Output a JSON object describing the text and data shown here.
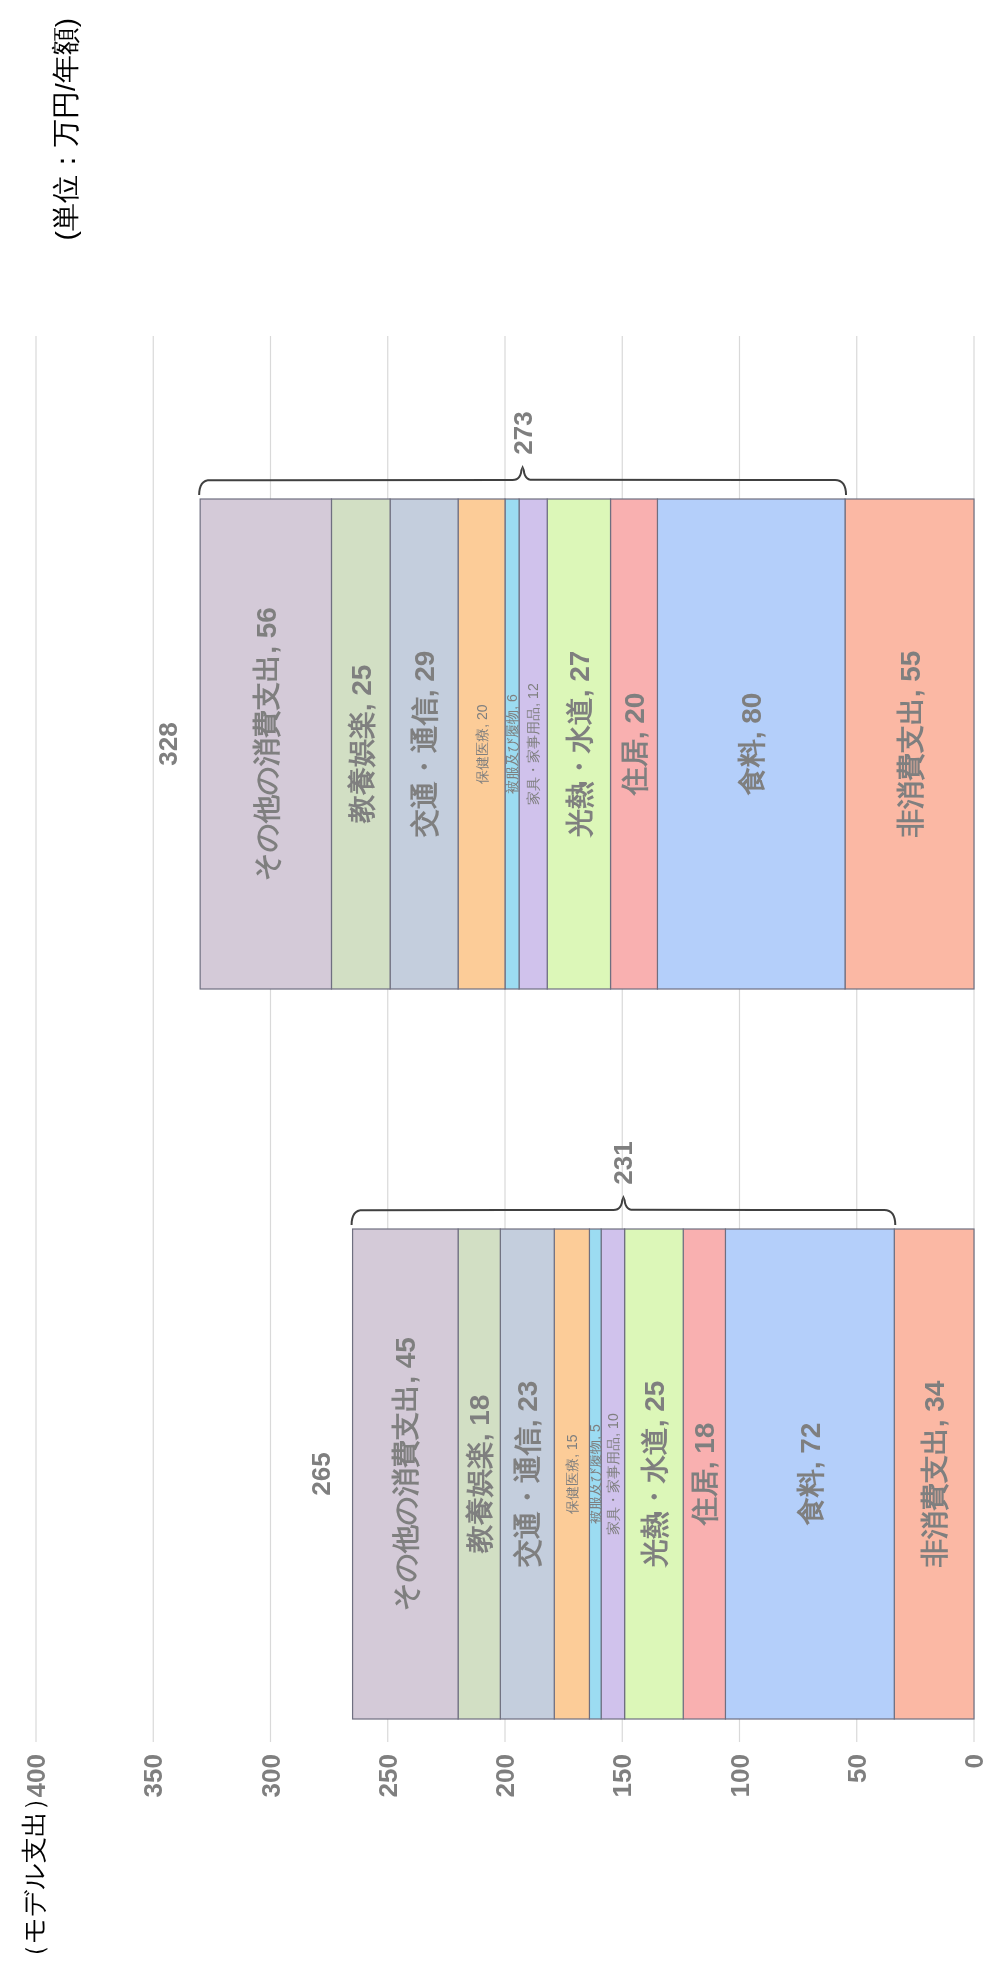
{
  "chart_data": {
    "type": "bar",
    "stacked": true,
    "orientation": "horizontal",
    "categories": [
      null,
      null
    ],
    "ylabel": "（モデル支出）",
    "annotations": [
      "273",
      "231",
      "(単位：万円/年額)"
    ],
    "xlim": [
      400,
      0
    ],
    "xticks": [
      400,
      350,
      300,
      250,
      200,
      150,
      100,
      50,
      0
    ],
    "grid": "x",
    "totals": [
      "328",
      "265"
    ],
    "series": [
      {
        "name": "非消費支出",
        "color": "#fbb8a4",
        "values": [
          55,
          34
        ],
        "value_labels": [
          ", 55",
          ", 34"
        ]
      },
      {
        "name": "食料",
        "color": "#b4cffa",
        "values": [
          80,
          72
        ],
        "value_labels": [
          ", 80",
          ", 72"
        ]
      },
      {
        "name": "住居",
        "color": "#f9b0b0",
        "values": [
          20,
          18
        ],
        "value_labels": [
          ", 20",
          ", 18"
        ]
      },
      {
        "name": "光熱・水道",
        "color": "#dcf7b8",
        "values": [
          27,
          25
        ],
        "value_labels": [
          ", 27",
          ", 25"
        ]
      },
      {
        "name": "家具・家事用品",
        "color": "#d0c2ec",
        "values": [
          12,
          10
        ],
        "value_labels": [
          ", 12",
          ", 10"
        ]
      },
      {
        "name": "被服及び履物",
        "color": "#9cdcf2",
        "values": [
          6,
          5
        ],
        "value_labels": [
          ", 6",
          ", 5"
        ]
      },
      {
        "name": "保健医療",
        "color": "#fccc98",
        "values": [
          20,
          15
        ],
        "value_labels": [
          ", 20",
          ", 15"
        ]
      },
      {
        "name": "交通・通信",
        "color": "#c4cedd",
        "values": [
          29,
          23
        ],
        "value_labels": [
          ", 29",
          ", 23"
        ]
      },
      {
        "name": "教養娯楽",
        "color": "#d2dfc4",
        "values": [
          25,
          18
        ],
        "value_labels": [
          ", 25",
          ", 18"
        ]
      },
      {
        "name": "その他の消費支出",
        "color": "#d4cad8",
        "values": [
          56,
          45
        ],
        "value_labels": [
          ", 56",
          ", 45"
        ]
      }
    ]
  }
}
